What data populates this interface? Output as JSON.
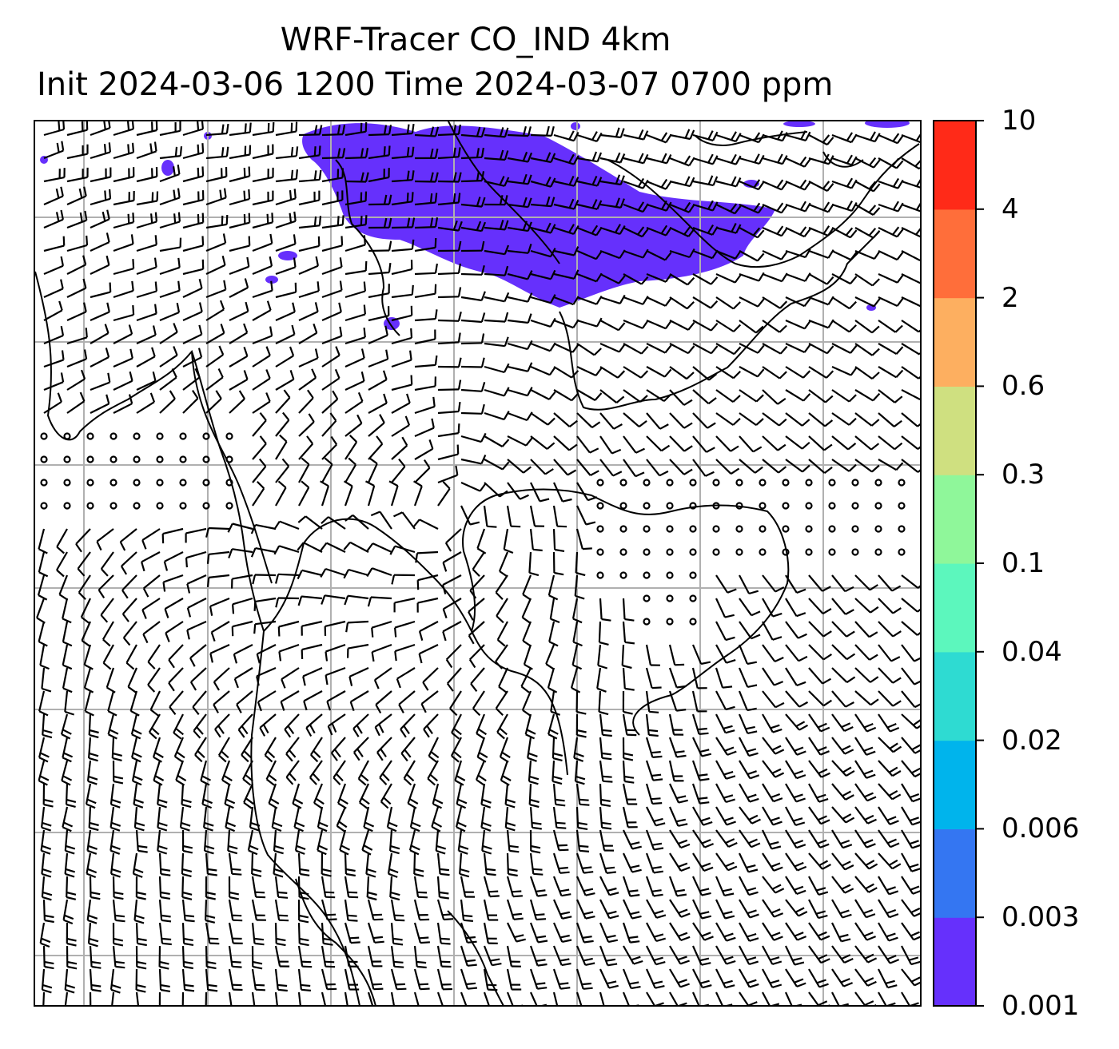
{
  "title": {
    "line1": "WRF-Tracer CO_IND 4km",
    "line2": "Init 2024-03-06 1200 Time 2024-03-07 0700 ppm"
  },
  "map": {
    "field": "CO_IND tracer concentration",
    "units": "ppm",
    "overlay": "wind barbs",
    "coastline_color": "#000000",
    "grid_color": "#b0b0b0",
    "plume_color": "#6630fc"
  },
  "colorbar": {
    "labels": [
      "0.001",
      "0.003",
      "0.006",
      "0.02",
      "0.04",
      "0.1",
      "0.3",
      "0.6",
      "2",
      "4",
      "10"
    ],
    "colors": [
      "#6630fc",
      "#3476f2",
      "#00b4ec",
      "#2edbd2",
      "#5cf7bd",
      "#8ff79a",
      "#cfe080",
      "#fdaf60",
      "#ff6e3a",
      "#ff2a18"
    ]
  }
}
